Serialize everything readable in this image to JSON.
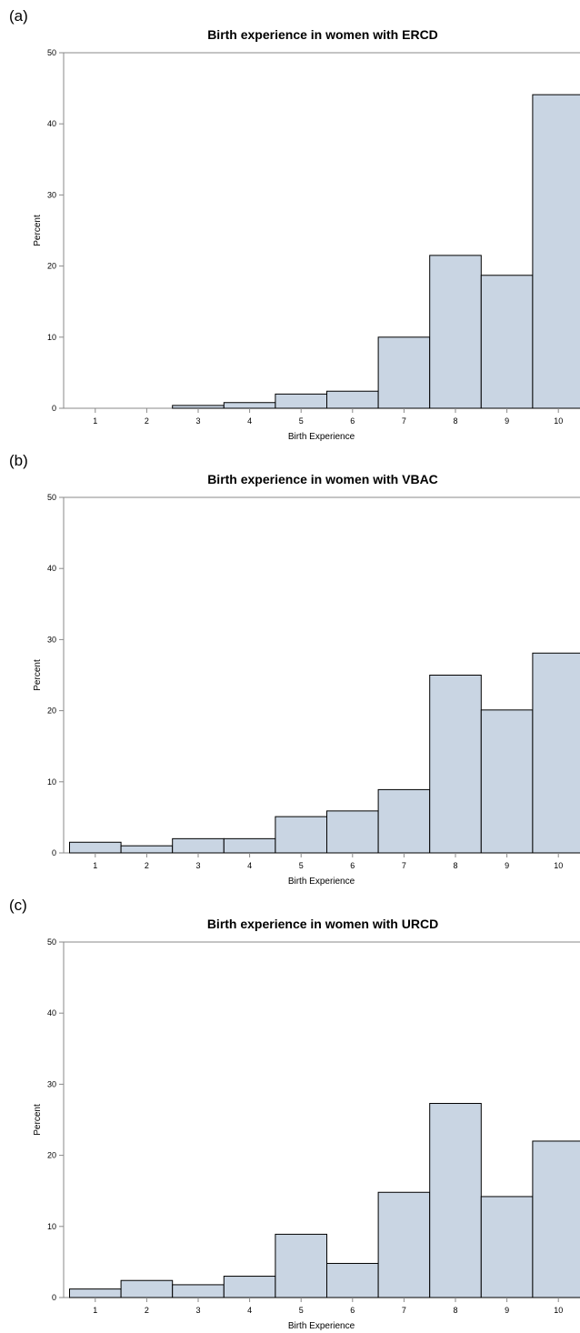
{
  "chart_data": [
    {
      "type": "bar",
      "panel_label": "(a)",
      "title": "Birth experience in women with ERCD",
      "xlabel": "Birth Experience",
      "ylabel": "Percent",
      "categories": [
        "1",
        "2",
        "3",
        "4",
        "5",
        "6",
        "7",
        "8",
        "9",
        "10"
      ],
      "values": [
        0,
        0,
        0.4,
        0.8,
        2.0,
        2.4,
        10.0,
        21.5,
        18.7,
        44.1
      ],
      "ylim": [
        0,
        50
      ],
      "yticks": [
        0,
        10,
        20,
        30,
        40,
        50
      ],
      "bar_color": "#c9d5e3",
      "grid": false
    },
    {
      "type": "bar",
      "panel_label": "(b)",
      "title": "Birth experience in women with VBAC",
      "xlabel": "Birth Experience",
      "ylabel": "Percent",
      "categories": [
        "1",
        "2",
        "3",
        "4",
        "5",
        "6",
        "7",
        "8",
        "9",
        "10"
      ],
      "values": [
        1.5,
        1.0,
        2.0,
        2.0,
        5.1,
        5.9,
        8.9,
        25.0,
        20.1,
        28.1
      ],
      "ylim": [
        0,
        50
      ],
      "yticks": [
        0,
        10,
        20,
        30,
        40,
        50
      ],
      "bar_color": "#c9d5e3",
      "grid": false
    },
    {
      "type": "bar",
      "panel_label": "(c)",
      "title": "Birth experience in women with URCD",
      "xlabel": "Birth Experience",
      "ylabel": "Percent",
      "categories": [
        "1",
        "2",
        "3",
        "4",
        "5",
        "6",
        "7",
        "8",
        "9",
        "10"
      ],
      "values": [
        1.2,
        2.4,
        1.8,
        3.0,
        8.9,
        4.8,
        14.8,
        27.3,
        14.2,
        22.0
      ],
      "ylim": [
        0,
        50
      ],
      "yticks": [
        0,
        10,
        20,
        30,
        40,
        50
      ],
      "bar_color": "#c9d5e3",
      "grid": false
    }
  ]
}
